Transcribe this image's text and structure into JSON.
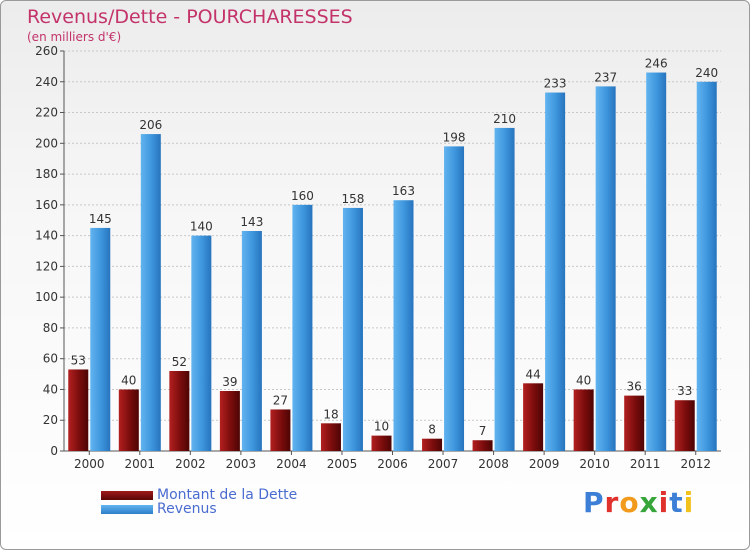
{
  "colors": {
    "debt": "#7a0c0c",
    "revenue": "#3d95dc",
    "title": "#c3336a"
  },
  "chart_data": {
    "type": "bar",
    "title": "Revenus/Dette - POURCHARESSES",
    "subtitle": "(en milliers d'€)",
    "categories": [
      "2000",
      "2001",
      "2002",
      "2003",
      "2004",
      "2005",
      "2006",
      "2007",
      "2008",
      "2009",
      "2010",
      "2011",
      "2012"
    ],
    "series": [
      {
        "name": "Montant de la Dette",
        "values": [
          53,
          40,
          52,
          39,
          27,
          18,
          10,
          8,
          7,
          44,
          40,
          36,
          33
        ]
      },
      {
        "name": "Revenus",
        "values": [
          145,
          206,
          140,
          143,
          160,
          158,
          163,
          198,
          210,
          233,
          237,
          246,
          240
        ]
      }
    ],
    "ylim": [
      0,
      260
    ],
    "yticks": [
      0,
      20,
      40,
      60,
      80,
      100,
      120,
      140,
      160,
      180,
      200,
      220,
      240,
      260
    ],
    "grid": true,
    "legend": "bottom-left"
  },
  "logo": {
    "text": "Proxiti"
  }
}
